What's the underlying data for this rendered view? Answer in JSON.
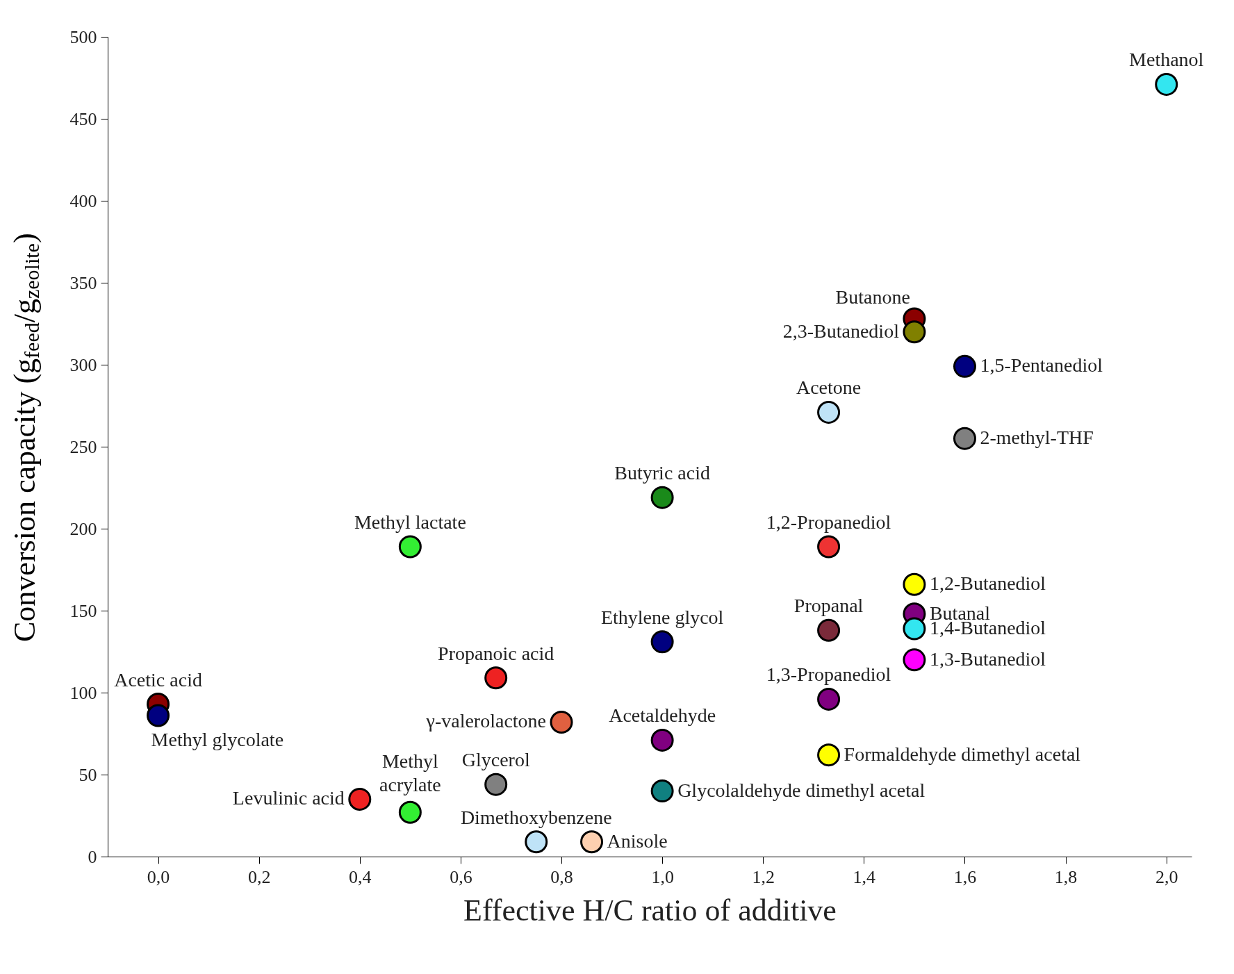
{
  "chart_data": {
    "type": "scatter",
    "xlabel": "Effective H/C ratio of additive",
    "ylabel": "Conversion capacity (g$_{feed}$/g$_{zeolite}$)",
    "marker": "circle",
    "grid": false,
    "legend": false,
    "xlim": [
      -0.1,
      2.05
    ],
    "ylim": [
      0,
      500
    ],
    "xticks": [
      {
        "value": 0,
        "label": "0,0"
      },
      {
        "value": 0.2,
        "label": "0,2"
      },
      {
        "value": 0.4,
        "label": "0,4"
      },
      {
        "value": 0.6,
        "label": "0,6"
      },
      {
        "value": 0.8,
        "label": "0,8"
      },
      {
        "value": 1,
        "label": "1,0"
      },
      {
        "value": 1.2,
        "label": "1,2"
      },
      {
        "value": 1.4,
        "label": "1,4"
      },
      {
        "value": 1.6,
        "label": "1,6"
      },
      {
        "value": 1.8,
        "label": "1,8"
      },
      {
        "value": 2,
        "label": "2,0"
      }
    ],
    "yticks": [
      0,
      50,
      100,
      150,
      200,
      250,
      300,
      350,
      400,
      450,
      500
    ],
    "series": [
      {
        "name": "Methanol",
        "color": "#33e6f0",
        "x": [
          2.0
        ],
        "values": [
          471
        ]
      },
      {
        "name": "Butanone",
        "color": "#8b0000",
        "x": [
          1.5
        ],
        "values": [
          328
        ]
      },
      {
        "name": "2,3-Butanediol",
        "color": "#808000",
        "x": [
          1.5
        ],
        "values": [
          320
        ]
      },
      {
        "name": "1,5-Pentanediol",
        "color": "#000080",
        "x": [
          1.6
        ],
        "values": [
          299
        ]
      },
      {
        "name": "Acetone",
        "color": "#bfe3f7",
        "x": [
          1.33
        ],
        "values": [
          271
        ]
      },
      {
        "name": "2-methyl-THF",
        "color": "#808080",
        "x": [
          1.6
        ],
        "values": [
          255
        ]
      },
      {
        "name": "Butyric acid",
        "color": "#1a8a1a",
        "x": [
          1.0
        ],
        "values": [
          219
        ]
      },
      {
        "name": "Methyl lactate",
        "color": "#33ee33",
        "x": [
          0.5
        ],
        "values": [
          189
        ]
      },
      {
        "name": "1,2-Propanediol",
        "color": "#ee3333",
        "x": [
          1.33
        ],
        "values": [
          189
        ]
      },
      {
        "name": "1,2-Butanediol",
        "color": "#ffff00",
        "x": [
          1.5
        ],
        "values": [
          166
        ]
      },
      {
        "name": "Butanal",
        "color": "#800080",
        "x": [
          1.5
        ],
        "values": [
          148
        ]
      },
      {
        "name": "1,4-Butanediol",
        "color": "#33e6f0",
        "x": [
          1.5
        ],
        "values": [
          139
        ]
      },
      {
        "name": "1,3-Butanediol",
        "color": "#ff00ff",
        "x": [
          1.5
        ],
        "values": [
          120
        ]
      },
      {
        "name": "Propanal",
        "color": "#7a2a3a",
        "x": [
          1.33
        ],
        "values": [
          138
        ]
      },
      {
        "name": "Ethylene glycol",
        "color": "#000080",
        "x": [
          1.0
        ],
        "values": [
          131
        ]
      },
      {
        "name": "Propanoic acid",
        "color": "#ee2222",
        "x": [
          0.67
        ],
        "values": [
          109
        ]
      },
      {
        "name": "Acetic acid",
        "color": "#8b0000",
        "x": [
          0.0
        ],
        "values": [
          93
        ]
      },
      {
        "name": "Methyl glycolate",
        "color": "#000080",
        "x": [
          0.0
        ],
        "values": [
          86
        ]
      },
      {
        "name": "1,3-Propanediol",
        "color": "#800080",
        "x": [
          1.33
        ],
        "values": [
          96
        ]
      },
      {
        "name": "γ-valerolactone",
        "color": "#e06040",
        "x": [
          0.8
        ],
        "values": [
          82
        ]
      },
      {
        "name": "Acetaldehyde",
        "color": "#800080",
        "x": [
          1.0
        ],
        "values": [
          71
        ]
      },
      {
        "name": "Formaldehyde dimethyl acetal",
        "color": "#ffff00",
        "x": [
          1.33
        ],
        "values": [
          62
        ]
      },
      {
        "name": "Glycerol",
        "color": "#808080",
        "x": [
          0.67
        ],
        "values": [
          44
        ]
      },
      {
        "name": "Glycolaldehyde dimethyl acetal",
        "color": "#108080",
        "x": [
          1.0
        ],
        "values": [
          40
        ]
      },
      {
        "name": "Levulinic acid",
        "color": "#ee2222",
        "x": [
          0.4
        ],
        "values": [
          35
        ]
      },
      {
        "name": "Methyl acrylate",
        "color": "#33ee33",
        "x": [
          0.5
        ],
        "values": [
          27
        ]
      },
      {
        "name": "Dimethoxybenzene",
        "color": "#bfe3f7",
        "x": [
          0.75
        ],
        "values": [
          9
        ]
      },
      {
        "name": "Anisole",
        "color": "#fdd0b0",
        "x": [
          0.86
        ],
        "values": [
          9
        ]
      }
    ]
  }
}
